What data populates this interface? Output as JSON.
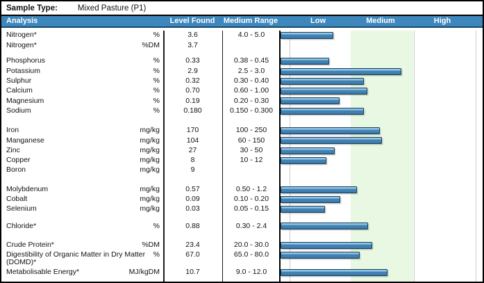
{
  "sample_type": {
    "label": "Sample Type:",
    "value": "Mixed Pasture (P1)"
  },
  "header": {
    "analysis": "Analysis",
    "level_found": "Level Found",
    "medium_range": "Medium Range",
    "low": "Low",
    "medium": "Medium",
    "high": "High"
  },
  "colors": {
    "header_blue": "#3e87bc",
    "header_edge": "#16486e",
    "medium_band_green": "#e8f8e2",
    "bar_fill": "#4181b2",
    "bar_highlight": "#8fc3e6",
    "bar_border": "#1d3f5a",
    "gridline": "#c9c9c9"
  },
  "groups": [
    {
      "rows": [
        {
          "name": "Nitrogen*",
          "unit": "%",
          "level": "3.6",
          "range": "4.0 - 5.0",
          "bar_pct": 26.2
        },
        {
          "name": "Nitrogen*",
          "unit": "%DM",
          "level": "3.7",
          "range": "",
          "bar_pct": null
        }
      ]
    },
    {
      "rows": [
        {
          "name": "Phosphorus",
          "unit": "%",
          "level": "0.33",
          "range": "0.38 - 0.45",
          "bar_pct": 24.1
        },
        {
          "name": "Potassium",
          "unit": "%",
          "level": "2.9",
          "range": "2.5 - 3.0",
          "bar_pct": 59.7
        },
        {
          "name": "Sulphur",
          "unit": "%",
          "level": "0.32",
          "range": "0.30 - 0.40",
          "bar_pct": 41.4
        },
        {
          "name": "Calcium",
          "unit": "%",
          "level": "0.70",
          "range": "0.60 - 1.00",
          "bar_pct": 43.1
        },
        {
          "name": "Magnesium",
          "unit": "%",
          "level": "0.19",
          "range": "0.20 - 0.30",
          "bar_pct": 29.3
        },
        {
          "name": "Sodium",
          "unit": "%",
          "level": "0.180",
          "range": "0.150 - 0.300",
          "bar_pct": 41.4
        }
      ]
    },
    {
      "rows": [
        {
          "name": "Iron",
          "unit": "mg/kg",
          "level": "170",
          "range": "100 - 250",
          "bar_pct": 49.3
        },
        {
          "name": "Manganese",
          "unit": "mg/kg",
          "level": "104",
          "range": "60 - 150",
          "bar_pct": 50.0
        },
        {
          "name": "Zinc",
          "unit": "mg/kg",
          "level": "27",
          "range": "30 - 50",
          "bar_pct": 26.9
        },
        {
          "name": "Copper",
          "unit": "mg/kg",
          "level": "8",
          "range": "10 - 12",
          "bar_pct": 22.8
        },
        {
          "name": "Boron",
          "unit": "mg/kg",
          "level": "9",
          "range": "",
          "bar_pct": null
        }
      ]
    },
    {
      "rows": [
        {
          "name": "Molybdenum",
          "unit": "mg/kg",
          "level": "0.57",
          "range": "0.50 - 1.2",
          "bar_pct": 37.9
        },
        {
          "name": "Cobalt",
          "unit": "mg/kg",
          "level": "0.09",
          "range": "0.10 - 0.20",
          "bar_pct": 29.7
        },
        {
          "name": "Selenium",
          "unit": "mg/kg",
          "level": "0.03",
          "range": "0.05 - 0.15",
          "bar_pct": 22.1
        }
      ]
    },
    {
      "rows": [
        {
          "name": "Chloride*",
          "unit": "%",
          "level": "0.88",
          "range": "0.30 - 2.4",
          "bar_pct": 43.4
        }
      ]
    },
    {
      "rows": [
        {
          "name": "Crude Protein*",
          "unit": "%DM",
          "level": "23.4",
          "range": "20.0 - 30.0",
          "bar_pct": 45.5
        },
        {
          "name": "Digestibility of Organic Matter in Dry Matter (DOMD)*",
          "unit": "%",
          "level": "67.0",
          "range": "65.0 - 80.0",
          "bar_pct": 39.3,
          "tall": true
        },
        {
          "name": "Metabolisable Energy*",
          "unit": "MJ/kgDM",
          "level": "10.7",
          "range": "9.0 - 12.0",
          "bar_pct": 52.8
        }
      ]
    }
  ],
  "chart_data": {
    "type": "bar",
    "orientation": "horizontal",
    "title": "Level Found vs Low / Medium / High range bands",
    "sections": [
      "Low",
      "Medium",
      "High"
    ],
    "medium_band_pct_of_axis": [
      34.8,
      65.5
    ],
    "categories": [
      "Nitrogen* (%)",
      "Nitrogen* (%DM)",
      "Phosphorus (%)",
      "Potassium (%)",
      "Sulphur (%)",
      "Calcium (%)",
      "Magnesium (%)",
      "Sodium (%)",
      "Iron (mg/kg)",
      "Manganese (mg/kg)",
      "Zinc (mg/kg)",
      "Copper (mg/kg)",
      "Boron (mg/kg)",
      "Molybdenum (mg/kg)",
      "Cobalt (mg/kg)",
      "Selenium (mg/kg)",
      "Chloride* (%)",
      "Crude Protein* (%DM)",
      "Digestibility of Organic Matter in Dry Matter (DOMD)* (%)",
      "Metabolisable Energy* (MJ/kgDM)"
    ],
    "values": [
      3.6,
      3.7,
      0.33,
      2.9,
      0.32,
      0.7,
      0.19,
      0.18,
      170,
      104,
      27,
      8,
      9,
      0.57,
      0.09,
      0.03,
      0.88,
      23.4,
      67.0,
      10.7
    ],
    "bar_length_pct_of_axis": [
      26.2,
      null,
      24.1,
      59.7,
      41.4,
      43.1,
      29.3,
      41.4,
      49.3,
      50.0,
      26.9,
      22.8,
      null,
      37.9,
      29.7,
      22.1,
      43.4,
      45.5,
      39.3,
      52.8
    ]
  }
}
